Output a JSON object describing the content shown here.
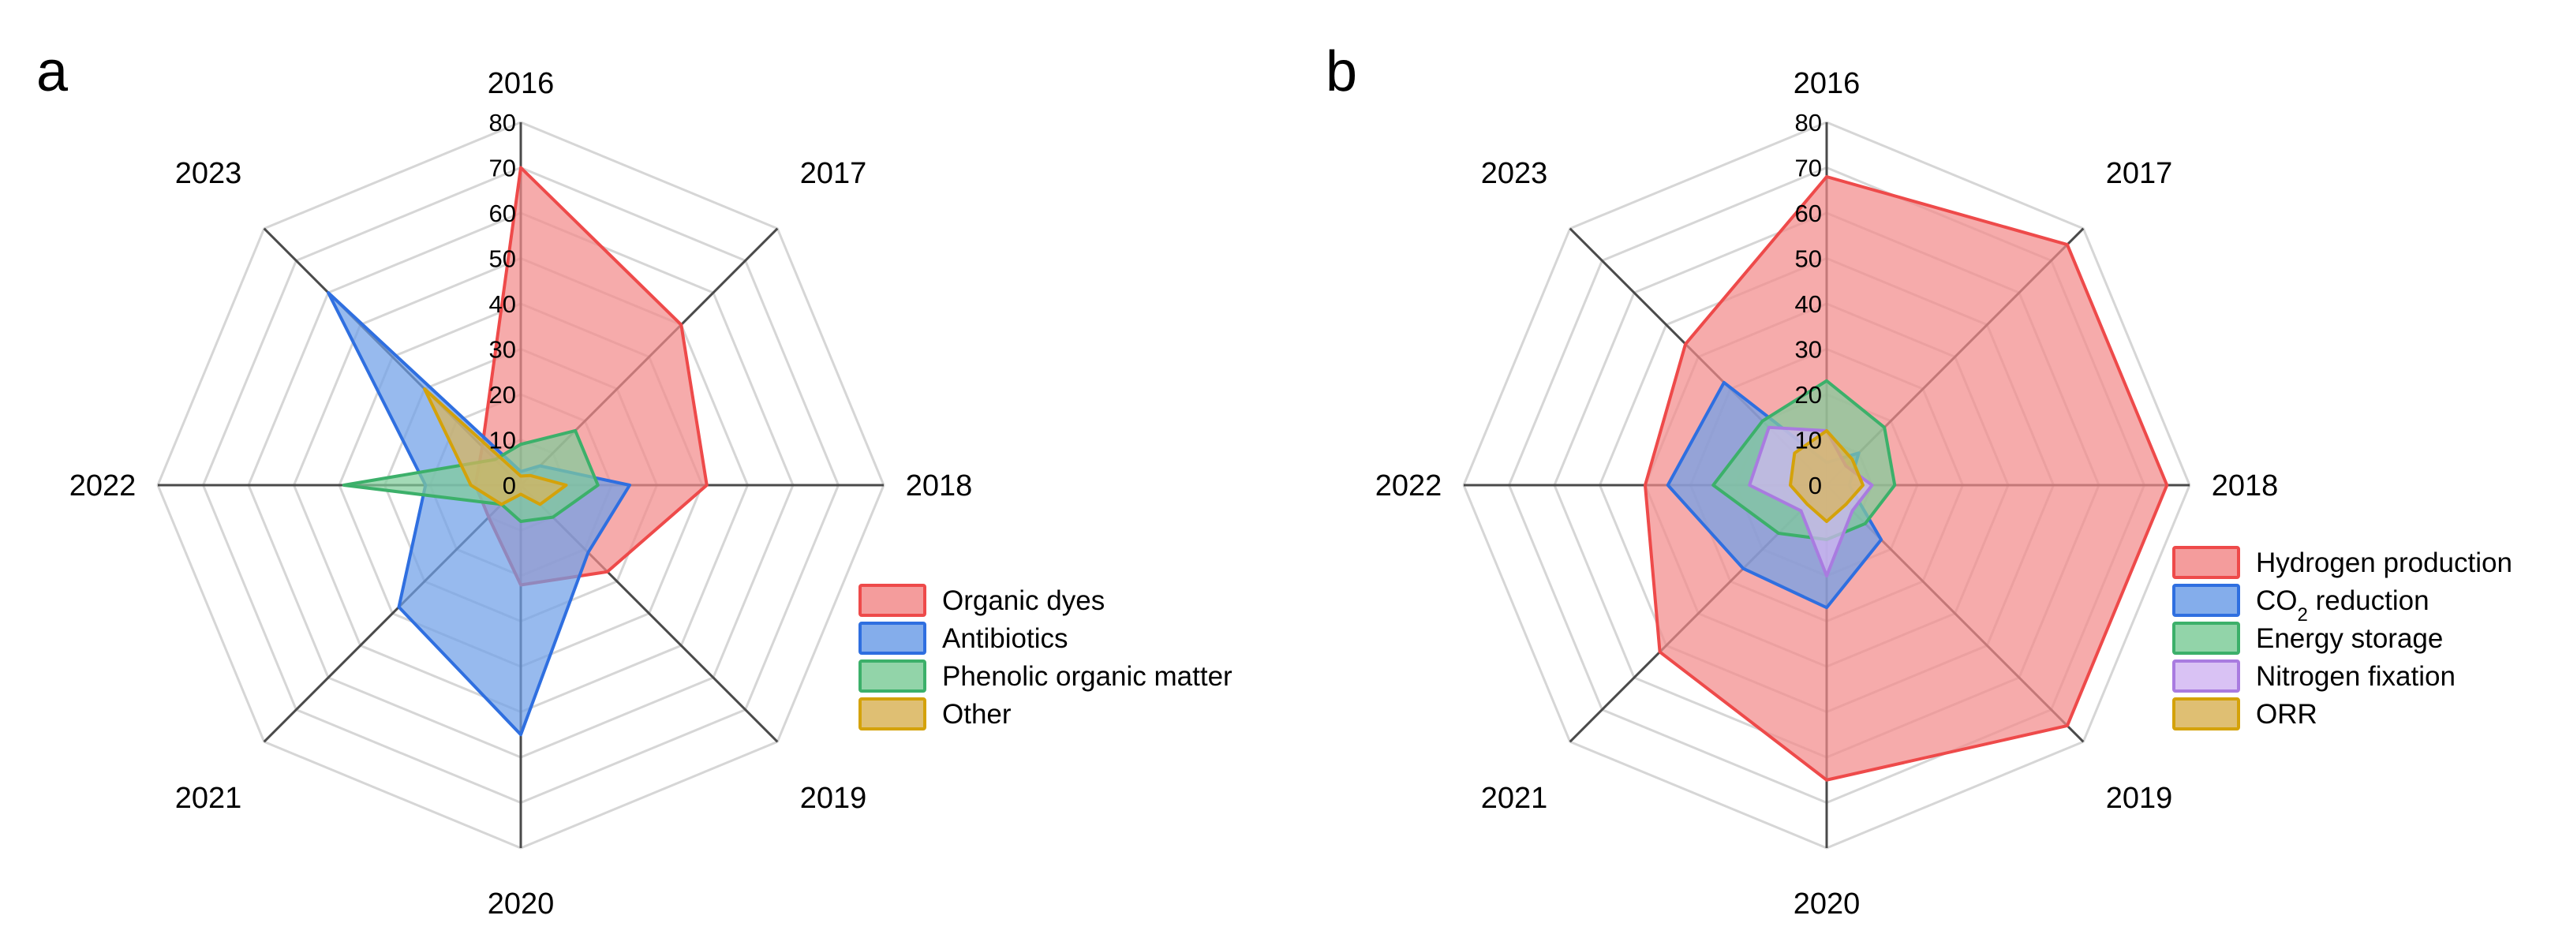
{
  "chart_data": [
    {
      "type": "radar",
      "panel_label": "a",
      "categories": [
        "2016",
        "2017",
        "2018",
        "2019",
        "2020",
        "2021",
        "2022",
        "2023"
      ],
      "ticks": [
        "0",
        "10",
        "20",
        "30",
        "40",
        "50",
        "60",
        "70",
        "80"
      ],
      "rlim": [
        0,
        80
      ],
      "series": [
        {
          "name": "Organic dyes",
          "color": "#ee4a4a",
          "fill": "#f28b8b",
          "values": [
            70,
            50,
            41,
            27,
            22,
            10,
            10,
            12
          ]
        },
        {
          "name": "Antibiotics",
          "color": "#2f6fe0",
          "fill": "#6f9fe8",
          "values": [
            3,
            6,
            24,
            21,
            55,
            38,
            21,
            60
          ]
        },
        {
          "name": "Phenolic organic matter",
          "color": "#3cb06a",
          "fill": "#7fcc9a",
          "values": [
            9,
            17,
            17,
            10,
            8,
            6,
            39,
            8
          ]
        },
        {
          "name": "Other",
          "color": "#d4a20a",
          "fill": "#d9b45a",
          "values": [
            2,
            3,
            10,
            6,
            2,
            6,
            11,
            30
          ]
        }
      ]
    },
    {
      "type": "radar",
      "panel_label": "b",
      "categories": [
        "2016",
        "2017",
        "2018",
        "2019",
        "2020",
        "2021",
        "2022",
        "2023"
      ],
      "ticks": [
        "0",
        "10",
        "20",
        "30",
        "40",
        "50",
        "60",
        "70",
        "80"
      ],
      "rlim": [
        0,
        80
      ],
      "series": [
        {
          "name": "Hydrogen production",
          "color": "#ee4a4a",
          "fill": "#f28b8b",
          "values": [
            68,
            75,
            75,
            75,
            65,
            52,
            40,
            44
          ]
        },
        {
          "name": "CO2 reduction",
          "color": "#2f6fe0",
          "fill": "#6f9fe8",
          "values": [
            5,
            10,
            5,
            17,
            27,
            26,
            35,
            32
          ]
        },
        {
          "name": "Energy storage",
          "color": "#3cb06a",
          "fill": "#7fcc9a",
          "values": [
            23,
            18,
            15,
            12,
            12,
            15,
            25,
            20
          ]
        },
        {
          "name": "Nitrogen fixation",
          "color": "#a97be0",
          "fill": "#d2b7f2",
          "values": [
            12,
            6,
            10,
            8,
            20,
            8,
            17,
            18
          ]
        },
        {
          "name": "ORR",
          "color": "#d4a20a",
          "fill": "#d9b45a",
          "values": [
            12,
            8,
            8,
            6,
            8,
            6,
            8,
            10
          ]
        }
      ]
    }
  ]
}
